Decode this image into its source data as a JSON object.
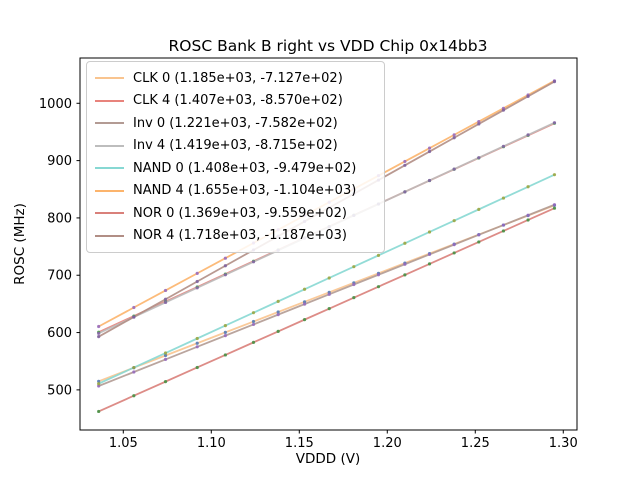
{
  "figure": {
    "title": "ROSC Bank B right vs VDD Chip 0x14bb3"
  },
  "chart_data": {
    "type": "line",
    "title": "ROSC Bank B right vs VDD Chip 0x14bb3",
    "xlabel": "VDDD (V)",
    "ylabel": "ROSC (MHz)",
    "xlim": [
      1.0254,
      1.3078
    ],
    "ylim": [
      430,
      1079
    ],
    "x_ticks": [
      1.05,
      1.1,
      1.15,
      1.2,
      1.25,
      1.3
    ],
    "x_tick_labels": [
      "1.05",
      "1.10",
      "1.15",
      "1.20",
      "1.25",
      "1.30"
    ],
    "y_ticks": [
      500,
      600,
      700,
      800,
      900,
      1000
    ],
    "y_tick_labels": [
      "500",
      "600",
      "700",
      "800",
      "900",
      "1000"
    ],
    "grid": false,
    "legend_position": "upper-left",
    "note": "each series is a linear fit y = slope*x + intercept with measured points",
    "x": [
      1.036,
      1.056,
      1.074,
      1.092,
      1.108,
      1.124,
      1.138,
      1.153,
      1.167,
      1.181,
      1.195,
      1.21,
      1.224,
      1.238,
      1.252,
      1.266,
      1.28,
      1.295
    ],
    "series": [
      {
        "name": "CLK 0",
        "label": "CLK 0 (1.185e+03, -7.127e+02)",
        "slope": 1185,
        "intercept": -712.7,
        "line_color": "#f9c48f",
        "marker_color": "#4b77b5"
      },
      {
        "name": "CLK 4",
        "label": "CLK 4 (1.407e+03, -8.570e+02)",
        "slope": 1407,
        "intercept": -857.0,
        "line_color": "#e8837c",
        "marker_color": "#43a047"
      },
      {
        "name": "Inv 0",
        "label": "Inv 0 (1.221e+03, -7.582e+02)",
        "slope": 1221,
        "intercept": -758.2,
        "line_color": "#b39b94",
        "marker_color": "#9467bd"
      },
      {
        "name": "Inv 4",
        "label": "Inv 4 (1.419e+03, -8.715e+02)",
        "slope": 1419,
        "intercept": -871.5,
        "line_color": "#bdbdbd",
        "marker_color": "#8a63ab"
      },
      {
        "name": "NAND 0",
        "label": "NAND 0 (1.408e+03, -9.479e+02)",
        "slope": 1408,
        "intercept": -947.9,
        "line_color": "#87d8d3",
        "marker_color": "#9aa33a"
      },
      {
        "name": "NAND 4",
        "label": "NAND 4 (1.655e+03, -1.104e+03)",
        "slope": 1655,
        "intercept": -1104.0,
        "line_color": "#fcb46c",
        "marker_color": "#9467bd"
      },
      {
        "name": "NOR 0",
        "label": "NOR 0 (1.369e+03, -9.559e+02)",
        "slope": 1369,
        "intercept": -955.9,
        "line_color": "#d9807a",
        "marker_color": "#3f8f3f"
      },
      {
        "name": "NOR 4",
        "label": "NOR 4 (1.718e+03, -1.187e+03)",
        "slope": 1718,
        "intercept": -1187.0,
        "line_color": "#b18e85",
        "marker_color": "#7d5f9e"
      }
    ]
  }
}
